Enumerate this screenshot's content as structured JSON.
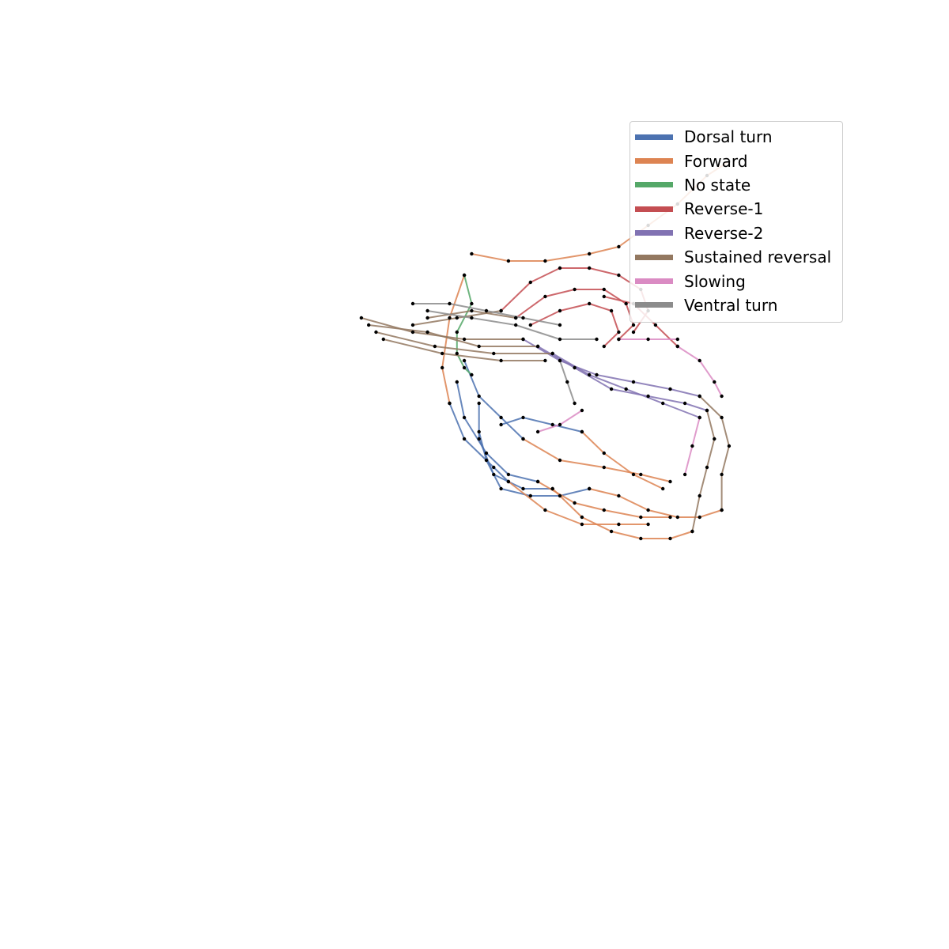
{
  "chart_data": {
    "type": "line",
    "title": "",
    "xlabel": "",
    "ylabel": "",
    "axes_visible": false,
    "grid": false,
    "legend_position": "upper-right",
    "markers": "black dots on every sample",
    "xlim": [
      0,
      1
    ],
    "ylim": [
      0,
      1
    ],
    "series": [
      {
        "name": "Dorsal turn",
        "color": "#4c72b0",
        "segments": [
          [
            [
              0.49,
              0.56
            ],
            [
              0.5,
              0.52
            ],
            [
              0.52,
              0.48
            ],
            [
              0.56,
              0.47
            ],
            [
              0.6,
              0.47
            ],
            [
              0.64,
              0.48
            ]
          ],
          [
            [
              0.49,
              0.6
            ],
            [
              0.49,
              0.55
            ],
            [
              0.51,
              0.5
            ],
            [
              0.55,
              0.48
            ],
            [
              0.59,
              0.48
            ]
          ],
          [
            [
              0.46,
              0.63
            ],
            [
              0.47,
              0.58
            ],
            [
              0.5,
              0.53
            ],
            [
              0.53,
              0.5
            ],
            [
              0.57,
              0.49
            ]
          ],
          [
            [
              0.45,
              0.6
            ],
            [
              0.47,
              0.55
            ],
            [
              0.51,
              0.51
            ],
            [
              0.53,
              0.49
            ]
          ],
          [
            [
              0.47,
              0.66
            ],
            [
              0.49,
              0.61
            ],
            [
              0.52,
              0.58
            ],
            [
              0.55,
              0.55
            ]
          ],
          [
            [
              0.52,
              0.57
            ],
            [
              0.55,
              0.58
            ],
            [
              0.59,
              0.57
            ],
            [
              0.63,
              0.56
            ]
          ]
        ]
      },
      {
        "name": "Forward",
        "color": "#dd8452",
        "segments": [
          [
            [
              0.64,
              0.48
            ],
            [
              0.68,
              0.47
            ],
            [
              0.72,
              0.45
            ],
            [
              0.76,
              0.44
            ],
            [
              0.79,
              0.44
            ],
            [
              0.82,
              0.45
            ]
          ],
          [
            [
              0.59,
              0.48
            ],
            [
              0.63,
              0.44
            ],
            [
              0.67,
              0.42
            ],
            [
              0.71,
              0.41
            ],
            [
              0.75,
              0.41
            ],
            [
              0.78,
              0.42
            ]
          ],
          [
            [
              0.57,
              0.49
            ],
            [
              0.62,
              0.46
            ],
            [
              0.66,
              0.45
            ],
            [
              0.71,
              0.44
            ],
            [
              0.75,
              0.44
            ]
          ],
          [
            [
              0.53,
              0.49
            ],
            [
              0.58,
              0.45
            ],
            [
              0.63,
              0.43
            ],
            [
              0.68,
              0.43
            ],
            [
              0.72,
              0.43
            ]
          ],
          [
            [
              0.55,
              0.55
            ],
            [
              0.6,
              0.52
            ],
            [
              0.66,
              0.51
            ],
            [
              0.71,
              0.5
            ],
            [
              0.75,
              0.49
            ]
          ],
          [
            [
              0.63,
              0.56
            ],
            [
              0.66,
              0.53
            ],
            [
              0.7,
              0.5
            ],
            [
              0.74,
              0.48
            ]
          ],
          [
            [
              0.45,
              0.6
            ],
            [
              0.44,
              0.65
            ],
            [
              0.45,
              0.72
            ],
            [
              0.47,
              0.78
            ]
          ],
          [
            [
              0.48,
              0.81
            ],
            [
              0.53,
              0.8
            ],
            [
              0.58,
              0.8
            ],
            [
              0.64,
              0.81
            ],
            [
              0.68,
              0.82
            ],
            [
              0.72,
              0.85
            ],
            [
              0.76,
              0.88
            ],
            [
              0.8,
              0.92
            ],
            [
              0.83,
              0.94
            ]
          ]
        ]
      },
      {
        "name": "No state",
        "color": "#55a868",
        "segments": [
          [
            [
              0.47,
              0.78
            ],
            [
              0.48,
              0.74
            ],
            [
              0.46,
              0.7
            ],
            [
              0.46,
              0.67
            ],
            [
              0.47,
              0.65
            ],
            [
              0.48,
              0.64
            ]
          ]
        ]
      },
      {
        "name": "Reverse-1",
        "color": "#c44e52",
        "segments": [
          [
            [
              0.52,
              0.73
            ],
            [
              0.56,
              0.77
            ],
            [
              0.6,
              0.79
            ],
            [
              0.64,
              0.79
            ],
            [
              0.68,
              0.78
            ],
            [
              0.71,
              0.76
            ],
            [
              0.72,
              0.73
            ],
            [
              0.7,
              0.7
            ]
          ],
          [
            [
              0.54,
              0.72
            ],
            [
              0.58,
              0.75
            ],
            [
              0.62,
              0.76
            ],
            [
              0.66,
              0.76
            ],
            [
              0.69,
              0.74
            ],
            [
              0.7,
              0.71
            ],
            [
              0.68,
              0.69
            ]
          ],
          [
            [
              0.56,
              0.71
            ],
            [
              0.6,
              0.73
            ],
            [
              0.64,
              0.74
            ],
            [
              0.67,
              0.73
            ],
            [
              0.68,
              0.7
            ],
            [
              0.66,
              0.68
            ]
          ],
          [
            [
              0.66,
              0.75
            ],
            [
              0.7,
              0.74
            ],
            [
              0.73,
              0.71
            ],
            [
              0.76,
              0.68
            ]
          ]
        ]
      },
      {
        "name": "Reverse-2",
        "color": "#8172b2",
        "segments": [
          [
            [
              0.55,
              0.69
            ],
            [
              0.6,
              0.66
            ],
            [
              0.65,
              0.64
            ],
            [
              0.7,
              0.63
            ],
            [
              0.75,
              0.62
            ],
            [
              0.79,
              0.61
            ]
          ],
          [
            [
              0.57,
              0.68
            ],
            [
              0.62,
              0.65
            ],
            [
              0.67,
              0.62
            ],
            [
              0.72,
              0.61
            ],
            [
              0.77,
              0.6
            ],
            [
              0.8,
              0.59
            ]
          ],
          [
            [
              0.59,
              0.67
            ],
            [
              0.64,
              0.64
            ],
            [
              0.69,
              0.62
            ],
            [
              0.74,
              0.6
            ],
            [
              0.79,
              0.58
            ]
          ]
        ]
      },
      {
        "name": "Sustained reversal",
        "color": "#937860",
        "segments": [
          [
            [
              0.33,
              0.72
            ],
            [
              0.4,
              0.7
            ],
            [
              0.47,
              0.69
            ],
            [
              0.55,
              0.69
            ]
          ],
          [
            [
              0.34,
              0.71
            ],
            [
              0.42,
              0.7
            ],
            [
              0.49,
              0.68
            ],
            [
              0.57,
              0.68
            ]
          ],
          [
            [
              0.35,
              0.7
            ],
            [
              0.43,
              0.68
            ],
            [
              0.51,
              0.67
            ],
            [
              0.59,
              0.67
            ]
          ],
          [
            [
              0.36,
              0.69
            ],
            [
              0.44,
              0.67
            ],
            [
              0.52,
              0.66
            ],
            [
              0.58,
              0.66
            ]
          ],
          [
            [
              0.4,
              0.71
            ],
            [
              0.46,
              0.72
            ],
            [
              0.52,
              0.73
            ]
          ],
          [
            [
              0.42,
              0.72
            ],
            [
              0.48,
              0.73
            ],
            [
              0.54,
              0.72
            ]
          ],
          [
            [
              0.79,
              0.61
            ],
            [
              0.82,
              0.58
            ],
            [
              0.83,
              0.54
            ],
            [
              0.82,
              0.5
            ],
            [
              0.82,
              0.45
            ]
          ],
          [
            [
              0.8,
              0.59
            ],
            [
              0.81,
              0.55
            ],
            [
              0.8,
              0.51
            ],
            [
              0.79,
              0.47
            ],
            [
              0.78,
              0.42
            ]
          ]
        ]
      },
      {
        "name": "Slowing",
        "color": "#da8bc3",
        "segments": [
          [
            [
              0.76,
              0.68
            ],
            [
              0.79,
              0.66
            ],
            [
              0.81,
              0.63
            ],
            [
              0.82,
              0.61
            ]
          ],
          [
            [
              0.68,
              0.69
            ],
            [
              0.72,
              0.69
            ],
            [
              0.76,
              0.69
            ]
          ],
          [
            [
              0.79,
              0.58
            ],
            [
              0.78,
              0.54
            ],
            [
              0.77,
              0.5
            ]
          ],
          [
            [
              0.57,
              0.56
            ],
            [
              0.6,
              0.57
            ],
            [
              0.63,
              0.59
            ]
          ]
        ]
      },
      {
        "name": "Ventral turn",
        "color": "#8c8c8c",
        "segments": [
          [
            [
              0.4,
              0.74
            ],
            [
              0.45,
              0.74
            ],
            [
              0.5,
              0.73
            ],
            [
              0.55,
              0.72
            ],
            [
              0.6,
              0.71
            ]
          ],
          [
            [
              0.42,
              0.73
            ],
            [
              0.48,
              0.72
            ],
            [
              0.54,
              0.71
            ],
            [
              0.6,
              0.69
            ],
            [
              0.65,
              0.69
            ]
          ],
          [
            [
              0.6,
              0.66
            ],
            [
              0.61,
              0.63
            ],
            [
              0.62,
              0.6
            ]
          ]
        ]
      }
    ]
  }
}
